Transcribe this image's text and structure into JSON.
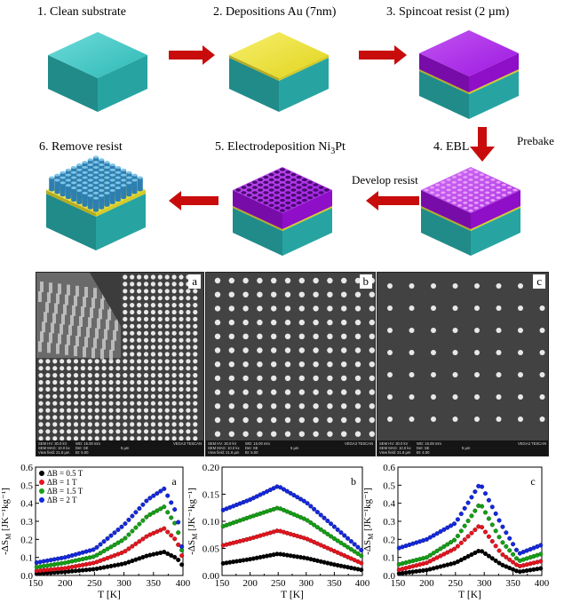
{
  "steps": [
    {
      "label": "1. Clean substrate"
    },
    {
      "label": "2. Depositions  Au (7nm)"
    },
    {
      "label": "3. Spincoat resist (2 µm)"
    },
    {
      "label": "4. EBL"
    },
    {
      "label": "5. Electrodeposition  Ni",
      "sub": "3",
      "suffix": "Pt"
    },
    {
      "label": "6. Remove resist"
    }
  ],
  "arrow_labels": {
    "prebake": "Prebake",
    "develop": "Develop resist"
  },
  "colors": {
    "substrate": "#2ab2b0",
    "gold": "#e8dc2a",
    "resist": "#9a10d8",
    "arrow": "#c80c0c",
    "series": [
      "#000000",
      "#e8141e",
      "#14a014",
      "#1428e0"
    ]
  },
  "sem_panels": [
    {
      "letter": "a",
      "info": {
        "hv": "SEM HV: 30.0 kV",
        "wd": "WD: 15.00 mm",
        "brand": "VEGA3 TESCAN",
        "mag": "SEM MAG: 10.0 kx",
        "det": "Det: SE",
        "scale": "5 µm",
        "vf": "View field: 21.8 µm",
        "bi": "BI: 5.00"
      }
    },
    {
      "letter": "b",
      "info": {
        "hv": "SEM HV: 30.0 kV",
        "wd": "WD: 15.00 mm",
        "brand": "VEGA3 TESCAN",
        "mag": "SEM MAG: 10.0 kx",
        "det": "Det: SE",
        "scale": "5 µm",
        "vf": "View field: 21.8 µm",
        "bi": "BI: 5.00"
      }
    },
    {
      "letter": "c",
      "info": {
        "hv": "SEM HV: 30.0 kV",
        "wd": "WD: 15.00 mm",
        "brand": "VEGA3 TESCAN",
        "mag": "SEM MAG: 10.0 kx",
        "det": "Det: SE",
        "scale": "5 µm",
        "vf": "View field: 21.8 µm",
        "bi": "BI: 4.00"
      }
    }
  ],
  "chart_data": [
    {
      "type": "scatter",
      "letter": "a",
      "ylabel": "-ΔS",
      "ylabel_sub": "M",
      "ylabel_unit": " [JK⁻¹kg⁻¹]",
      "xlabel": "T [K]",
      "xlim": [
        150,
        400
      ],
      "ylim": [
        0,
        0.6
      ],
      "xticks": [
        150,
        200,
        250,
        300,
        350,
        400
      ],
      "yticks": [
        0.0,
        0.1,
        0.2,
        0.3,
        0.4,
        0.5,
        0.6
      ],
      "ytick_labels": [
        "0.0",
        "0.1",
        "0.2",
        "0.3",
        "0.4",
        "0.5",
        "0.6"
      ],
      "legend": [
        "ΔB = 0.5 T",
        "ΔB = 1 T",
        "ΔB = 1.5 T",
        "ΔB = 2 T"
      ],
      "x_start": 152,
      "x_end": 398,
      "x_step": 6,
      "peak_T": 368,
      "series": [
        {
          "T": [
            150,
            200,
            250,
            300,
            340,
            368,
            390,
            398
          ],
          "S": [
            0.01,
            0.02,
            0.035,
            0.065,
            0.11,
            0.13,
            0.095,
            0.06
          ]
        },
        {
          "T": [
            150,
            200,
            250,
            300,
            340,
            368,
            390,
            398
          ],
          "S": [
            0.025,
            0.04,
            0.07,
            0.13,
            0.22,
            0.26,
            0.19,
            0.11
          ]
        },
        {
          "T": [
            150,
            200,
            250,
            300,
            340,
            368,
            390,
            398
          ],
          "S": [
            0.045,
            0.07,
            0.105,
            0.2,
            0.33,
            0.38,
            0.27,
            0.14
          ]
        },
        {
          "T": [
            150,
            200,
            250,
            300,
            340,
            368,
            390,
            398
          ],
          "S": [
            0.07,
            0.1,
            0.145,
            0.28,
            0.42,
            0.48,
            0.34,
            0.16
          ]
        }
      ]
    },
    {
      "type": "scatter",
      "letter": "b",
      "ylabel": "-ΔS",
      "ylabel_sub": "M",
      "ylabel_unit": " [JK⁻¹kg⁻¹]",
      "xlabel": "T [K]",
      "xlim": [
        150,
        400
      ],
      "ylim": [
        0,
        0.2
      ],
      "xticks": [
        150,
        200,
        250,
        300,
        350,
        400
      ],
      "yticks": [
        0.0,
        0.05,
        0.1,
        0.15,
        0.2
      ],
      "ytick_labels": [
        "0.00",
        "0.05",
        "0.10",
        "0.15",
        "0.20"
      ],
      "x_start": 152,
      "x_end": 398,
      "x_step": 6,
      "peak_T": 250,
      "series": [
        {
          "T": [
            150,
            200,
            250,
            300,
            350,
            400
          ],
          "S": [
            0.022,
            0.03,
            0.04,
            0.032,
            0.02,
            0.01
          ]
        },
        {
          "T": [
            150,
            200,
            250,
            300,
            350,
            400
          ],
          "S": [
            0.055,
            0.068,
            0.083,
            0.068,
            0.045,
            0.022
          ]
        },
        {
          "T": [
            150,
            200,
            250,
            300,
            350,
            400
          ],
          "S": [
            0.09,
            0.108,
            0.125,
            0.103,
            0.068,
            0.035
          ]
        },
        {
          "T": [
            150,
            200,
            250,
            300,
            350,
            400
          ],
          "S": [
            0.12,
            0.14,
            0.165,
            0.135,
            0.09,
            0.045
          ]
        }
      ]
    },
    {
      "type": "scatter",
      "letter": "c",
      "ylabel": "-ΔS",
      "ylabel_sub": "M",
      "ylabel_unit": " [JK⁻¹kg⁻¹]",
      "xlabel": "T [K]",
      "xlim": [
        150,
        400
      ],
      "ylim": [
        0,
        0.6
      ],
      "xticks": [
        150,
        200,
        250,
        300,
        350,
        400
      ],
      "yticks": [
        0.0,
        0.1,
        0.2,
        0.3,
        0.4,
        0.5,
        0.6
      ],
      "ytick_labels": [
        "0.0",
        "0.1",
        "0.2",
        "0.3",
        "0.4",
        "0.5",
        "0.6"
      ],
      "x_start": 152,
      "x_end": 398,
      "x_step": 6,
      "peak_T": 293,
      "series": [
        {
          "T": [
            150,
            200,
            250,
            293,
            330,
            360,
            400
          ],
          "S": [
            0.01,
            0.03,
            0.07,
            0.14,
            0.06,
            0.02,
            0.04
          ]
        },
        {
          "T": [
            150,
            200,
            250,
            293,
            330,
            360,
            400
          ],
          "S": [
            0.03,
            0.07,
            0.15,
            0.28,
            0.12,
            0.05,
            0.08
          ]
        },
        {
          "T": [
            150,
            200,
            250,
            293,
            330,
            360,
            400
          ],
          "S": [
            0.06,
            0.1,
            0.2,
            0.4,
            0.19,
            0.08,
            0.12
          ]
        },
        {
          "T": [
            150,
            200,
            250,
            293,
            330,
            360,
            400
          ],
          "S": [
            0.15,
            0.2,
            0.29,
            0.51,
            0.28,
            0.12,
            0.17
          ]
        }
      ]
    }
  ]
}
